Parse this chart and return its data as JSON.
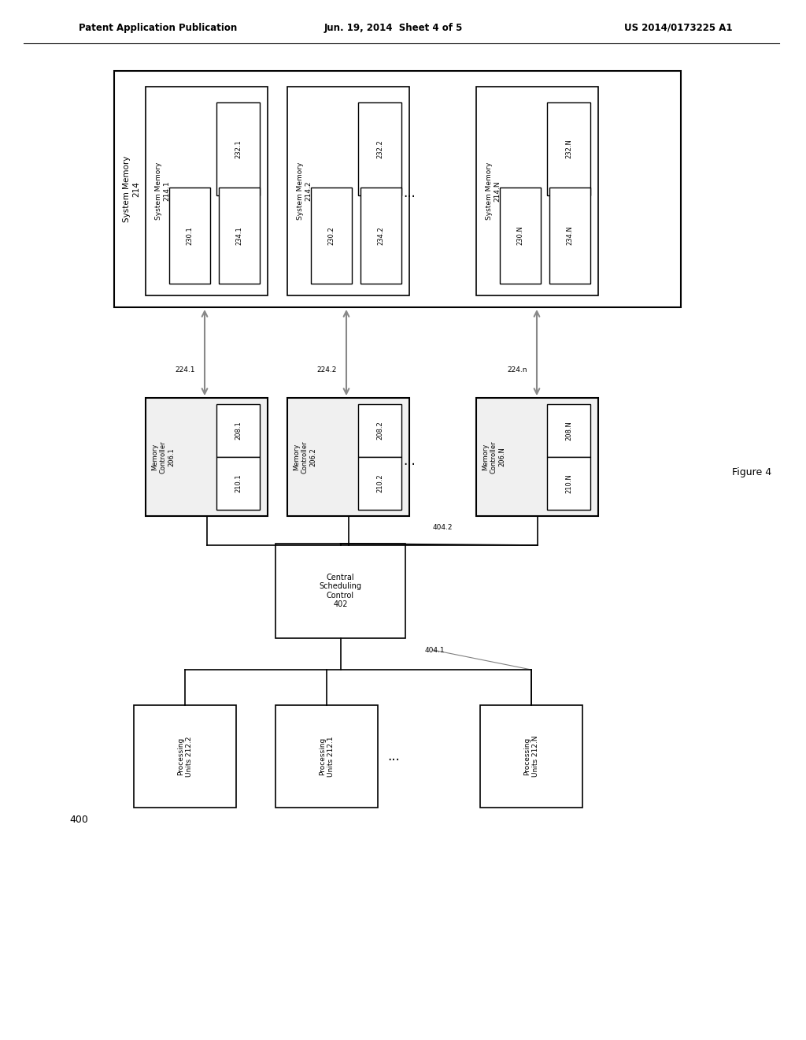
{
  "bg_color": "#ffffff",
  "text_color": "#000000",
  "header_left": "Patent Application Publication",
  "header_center": "Jun. 19, 2014  Sheet 4 of 5",
  "header_right": "US 2014/0173225 A1",
  "figure_label": "Figure 4",
  "diagram_number": "400",
  "system_memory_outer_label": "System Memory\n214",
  "sys_mem_boxes": [
    {
      "label": "System Memory\n214.1",
      "sub_top": "232.1",
      "sub_bl": "230.1",
      "sub_br": "234.1"
    },
    {
      "label": "System Memory\n214.2",
      "sub_top": "232.2",
      "sub_bl": "230.2",
      "sub_br": "234.2"
    },
    {
      "label": "System Memory\n214.N",
      "sub_top": "232.N",
      "sub_bl": "230.N",
      "sub_br": "234.N"
    }
  ],
  "dots_row1": "...",
  "mem_ctrl_boxes": [
    {
      "label": "Memory\nController\n206.1",
      "sub_tr": "208.1",
      "sub_b": "210.1"
    },
    {
      "label": "Memory\nController\n206.2",
      "sub_tr": "208.2",
      "sub_b": "210.2"
    },
    {
      "label": "Memory\nController\n206.N",
      "sub_tr": "208.N",
      "sub_b": "210.N"
    }
  ],
  "arrows_224": [
    "224.1",
    "224.2",
    "224.n"
  ],
  "dots_row2": "...",
  "central_box_label": "Central\nScheduling\nControl\n402",
  "arrow_404_1": "404.1",
  "arrow_404_2": "404.2",
  "proc_boxes": [
    {
      "label": "Processing\nUnits 212.2"
    },
    {
      "label": "Processing\nUnits 212.1"
    },
    {
      "label": "Processing\nUnits 212.N"
    }
  ],
  "dots_row3": "..."
}
